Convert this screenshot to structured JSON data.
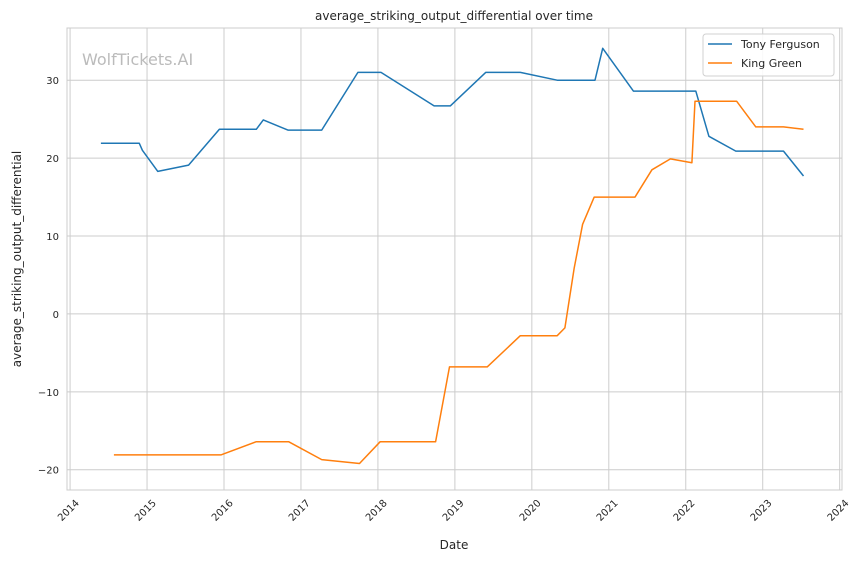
{
  "chart_data": {
    "type": "line",
    "title": "average_striking_output_differential over time",
    "xlabel": "Date",
    "ylabel": "average_striking_output_differential",
    "watermark": "WolfTickets.AI",
    "xlim": [
      2013.96,
      2024.03
    ],
    "ylim": [
      -22.6,
      36.7
    ],
    "xticks": [
      2014,
      2015,
      2016,
      2017,
      2018,
      2019,
      2020,
      2021,
      2022,
      2023,
      2024
    ],
    "xtick_labels": [
      "2014",
      "2015",
      "2016",
      "2017",
      "2018",
      "2019",
      "2020",
      "2021",
      "2022",
      "2023",
      "2024"
    ],
    "yticks": [
      -20,
      -10,
      0,
      10,
      20,
      30
    ],
    "ytick_labels": [
      "−20",
      "−10",
      "0",
      "10",
      "20",
      "30"
    ],
    "grid": true,
    "legend_position": "top-right",
    "series": [
      {
        "name": "Tony Ferguson",
        "color": "#1f77b4",
        "x": [
          2014.4,
          2014.9,
          2014.94,
          2015.14,
          2015.54,
          2015.94,
          2016.42,
          2016.51,
          2016.83,
          2017.27,
          2017.74,
          2018.04,
          2018.73,
          2018.94,
          2019.4,
          2019.85,
          2020.33,
          2020.82,
          2020.92,
          2021.32,
          2022.13,
          2022.3,
          2022.65,
          2023.27,
          2023.53
        ],
        "y": [
          21.9,
          21.9,
          21.0,
          18.3,
          19.1,
          23.7,
          23.7,
          24.9,
          23.6,
          23.6,
          31.0,
          31.0,
          26.7,
          26.7,
          31.0,
          31.0,
          30.0,
          30.0,
          34.1,
          28.6,
          28.6,
          22.8,
          20.9,
          20.9,
          17.7
        ]
      },
      {
        "name": "King Green",
        "color": "#ff7f0e",
        "x": [
          2014.57,
          2015.96,
          2016.42,
          2016.84,
          2017.27,
          2017.76,
          2018.03,
          2018.75,
          2018.93,
          2019.42,
          2019.85,
          2020.33,
          2020.43,
          2020.55,
          2020.66,
          2020.81,
          2021.34,
          2021.56,
          2021.8,
          2022.08,
          2022.12,
          2022.66,
          2022.91,
          2023.27,
          2023.53
        ],
        "y": [
          -18.1,
          -18.1,
          -16.4,
          -16.4,
          -18.7,
          -19.2,
          -16.4,
          -16.4,
          -6.8,
          -6.8,
          -2.8,
          -2.8,
          -1.8,
          5.9,
          11.5,
          15.0,
          15.0,
          18.5,
          19.9,
          19.4,
          27.3,
          27.3,
          24.0,
          24.0,
          23.7
        ]
      }
    ]
  }
}
